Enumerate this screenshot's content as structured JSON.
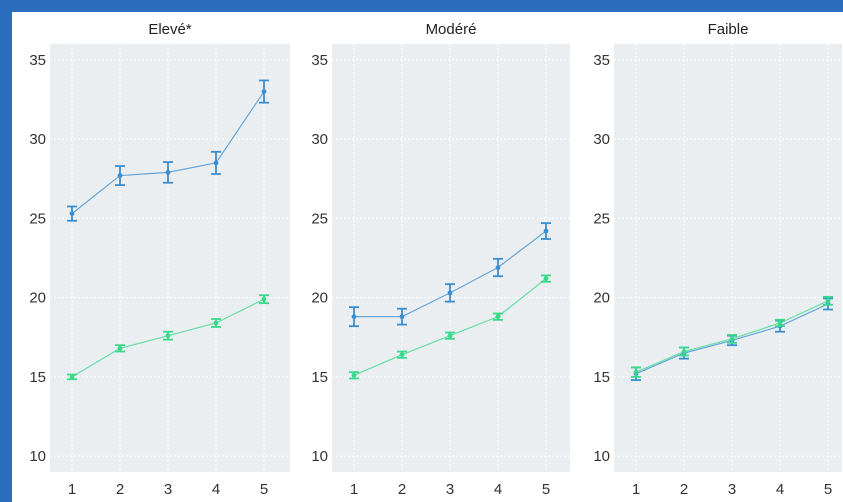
{
  "colors": {
    "frame": "#2a6ebd",
    "panel_bg": "#ebeef1",
    "grid": "#ffffff",
    "series_blue": "#3a8ed0",
    "series_green": "#39d98a"
  },
  "chart_data": [
    {
      "type": "line",
      "title": "Elevé*",
      "x": [
        1,
        2,
        3,
        4,
        5
      ],
      "ylim": [
        9,
        36
      ],
      "yticks": [
        10,
        15,
        20,
        25,
        30,
        35
      ],
      "grid": true,
      "legend": "none",
      "error_bars": true,
      "series": [
        {
          "color": "#3a8ed0",
          "values": [
            25.3,
            27.7,
            27.9,
            28.5,
            33.0
          ],
          "errors": [
            0.45,
            0.6,
            0.65,
            0.7,
            0.7
          ]
        },
        {
          "color": "#39d98a",
          "values": [
            15.0,
            16.8,
            17.6,
            18.4,
            19.9
          ],
          "errors": [
            0.15,
            0.2,
            0.25,
            0.25,
            0.25
          ]
        }
      ]
    },
    {
      "type": "line",
      "title": "Modéré",
      "x": [
        1,
        2,
        3,
        4,
        5
      ],
      "ylim": [
        9,
        36
      ],
      "yticks": [
        10,
        15,
        20,
        25,
        30,
        35
      ],
      "grid": true,
      "legend": "none",
      "error_bars": true,
      "series": [
        {
          "color": "#3a8ed0",
          "values": [
            18.8,
            18.8,
            20.3,
            21.9,
            24.2
          ],
          "errors": [
            0.6,
            0.5,
            0.55,
            0.55,
            0.5
          ]
        },
        {
          "color": "#39d98a",
          "values": [
            15.1,
            16.4,
            17.6,
            18.8,
            21.2
          ],
          "errors": [
            0.2,
            0.2,
            0.2,
            0.2,
            0.2
          ]
        }
      ]
    },
    {
      "type": "line",
      "title": "Faible",
      "x": [
        1,
        2,
        3,
        4,
        5
      ],
      "ylim": [
        9,
        36
      ],
      "yticks": [
        10,
        15,
        20,
        25,
        30,
        35
      ],
      "grid": true,
      "legend": "none",
      "error_bars": true,
      "series": [
        {
          "color": "#3a8ed0",
          "values": [
            15.2,
            16.5,
            17.3,
            18.2,
            19.6
          ],
          "errors": [
            0.4,
            0.35,
            0.3,
            0.35,
            0.35
          ]
        },
        {
          "color": "#39d98a",
          "values": [
            15.3,
            16.6,
            17.4,
            18.4,
            19.8
          ],
          "errors": [
            0.3,
            0.25,
            0.25,
            0.2,
            0.25
          ]
        }
      ]
    }
  ]
}
